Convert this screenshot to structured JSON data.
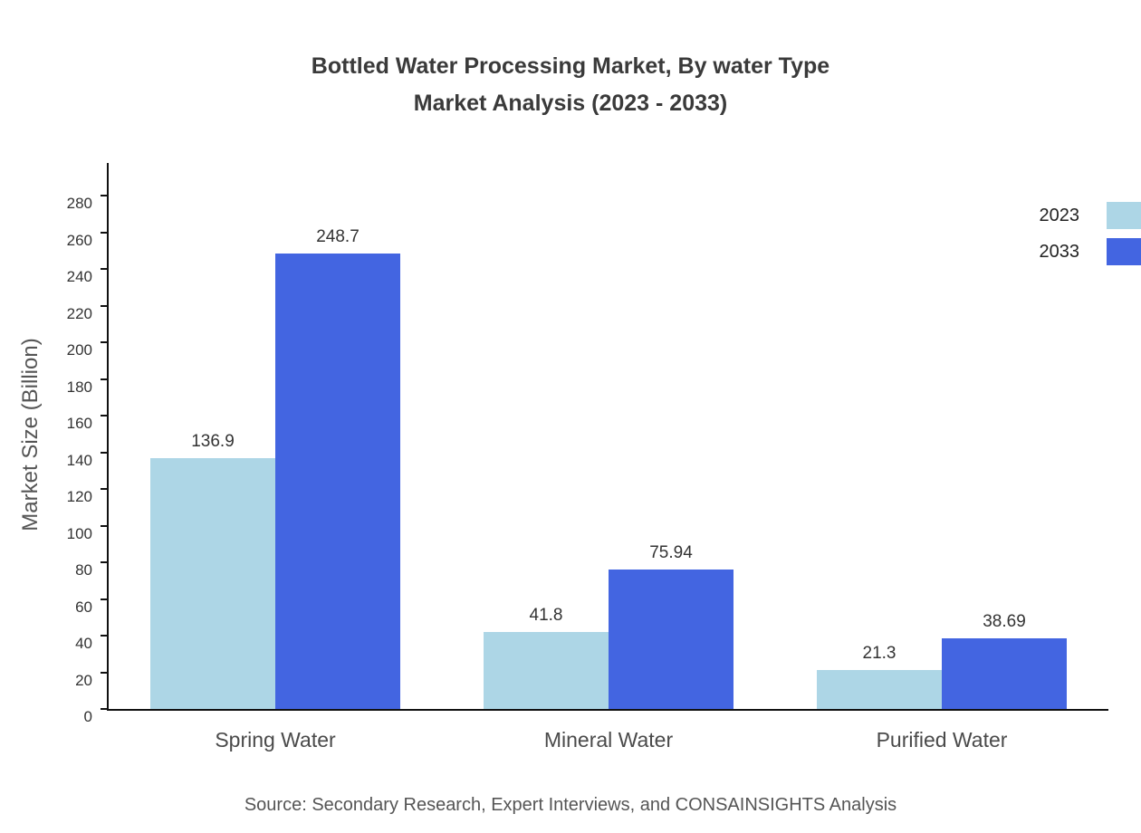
{
  "page": {
    "title_line1": "Bottled Water Processing Market, By water Type",
    "title_line2": "Market Analysis (2023 - 2033)",
    "source": "Source: Secondary Research, Expert Interviews, and CONSAINSIGHTS Analysis"
  },
  "chart_data": {
    "type": "bar",
    "title": "Bottled Water Processing Market, By water Type Market Analysis (2023 - 2033)",
    "categories": [
      "Spring Water",
      "Mineral Water",
      "Purified Water"
    ],
    "series": [
      {
        "name": "2023",
        "color": "#ADD6E6",
        "values": [
          136.9,
          41.8,
          21.3
        ]
      },
      {
        "name": "2033",
        "color": "#4365E1",
        "values": [
          248.7,
          75.94,
          38.69
        ]
      }
    ],
    "xlabel": "",
    "ylabel": "Market Size (Billion)",
    "ylim": [
      0,
      298
    ],
    "ytick_step": 20,
    "ytick_max": 280,
    "grid": false,
    "legend_position": "top-right"
  }
}
